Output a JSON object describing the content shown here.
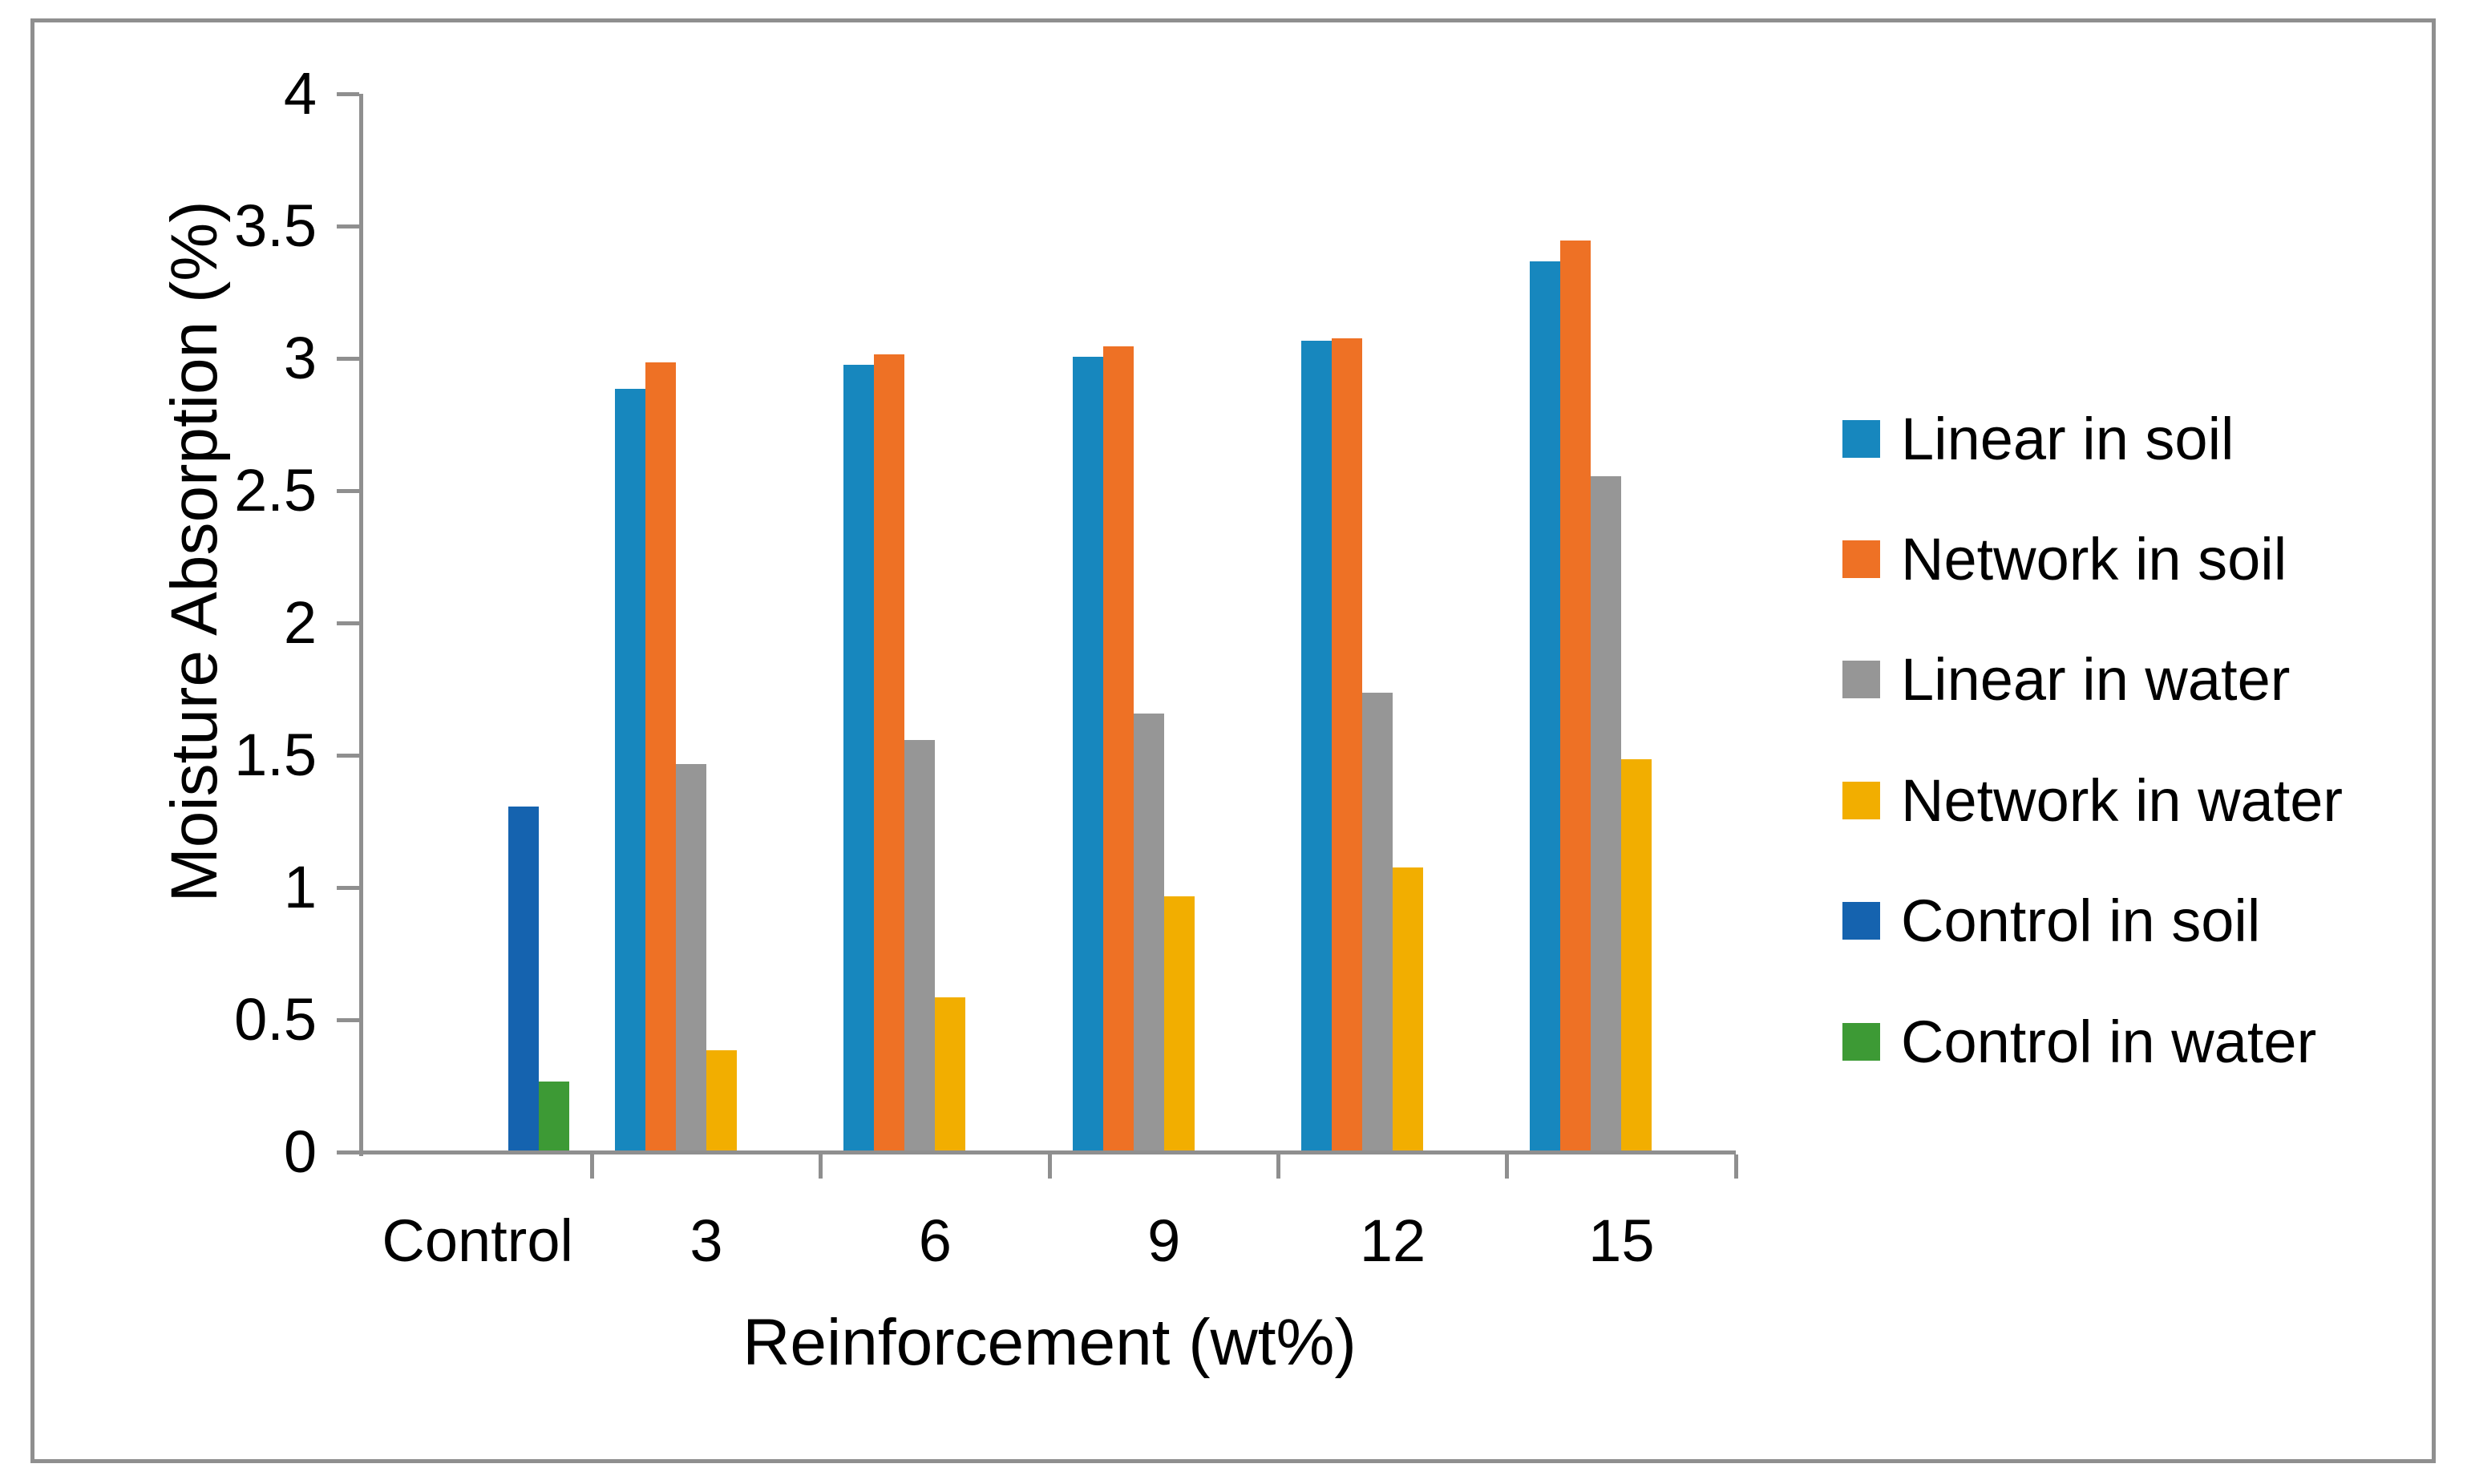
{
  "figure": {
    "background": "#FFFFFF",
    "frame_color": "#8F8F8F",
    "axis_color": "#8F8F8F",
    "text_color": "#000000"
  },
  "chart_data": {
    "type": "bar",
    "title": "",
    "xlabel": "Reinforcement (wt%)",
    "ylabel": "Moisture Absorption (%)",
    "categories": [
      "Control",
      "3",
      "6",
      "9",
      "12",
      "15"
    ],
    "ylim": [
      0,
      4
    ],
    "ytick_step": 0.5,
    "ytick_labels": [
      "0",
      "0.5",
      "1",
      "1.5",
      "2",
      "2.5",
      "3",
      "3.5",
      "4"
    ],
    "grid": false,
    "legend_position": "right",
    "series": [
      {
        "name": "Linear in soil",
        "color": "#1787BE",
        "values": [
          null,
          2.88,
          2.97,
          3.0,
          3.06,
          3.36
        ]
      },
      {
        "name": "Network in soil",
        "color": "#EE7125",
        "values": [
          null,
          2.98,
          3.01,
          3.04,
          3.07,
          3.44
        ]
      },
      {
        "name": "Linear in water",
        "color": "#969696",
        "values": [
          null,
          1.46,
          1.55,
          1.65,
          1.73,
          2.55
        ]
      },
      {
        "name": "Network in water",
        "color": "#F2AE00",
        "values": [
          null,
          0.38,
          0.58,
          0.96,
          1.07,
          1.48
        ]
      },
      {
        "name": "Control in soil",
        "color": "#1563AF",
        "values": [
          1.3,
          null,
          null,
          null,
          null,
          null
        ]
      },
      {
        "name": "Control in water",
        "color": "#3D9A35",
        "values": [
          0.26,
          null,
          null,
          null,
          null,
          null
        ]
      }
    ]
  }
}
